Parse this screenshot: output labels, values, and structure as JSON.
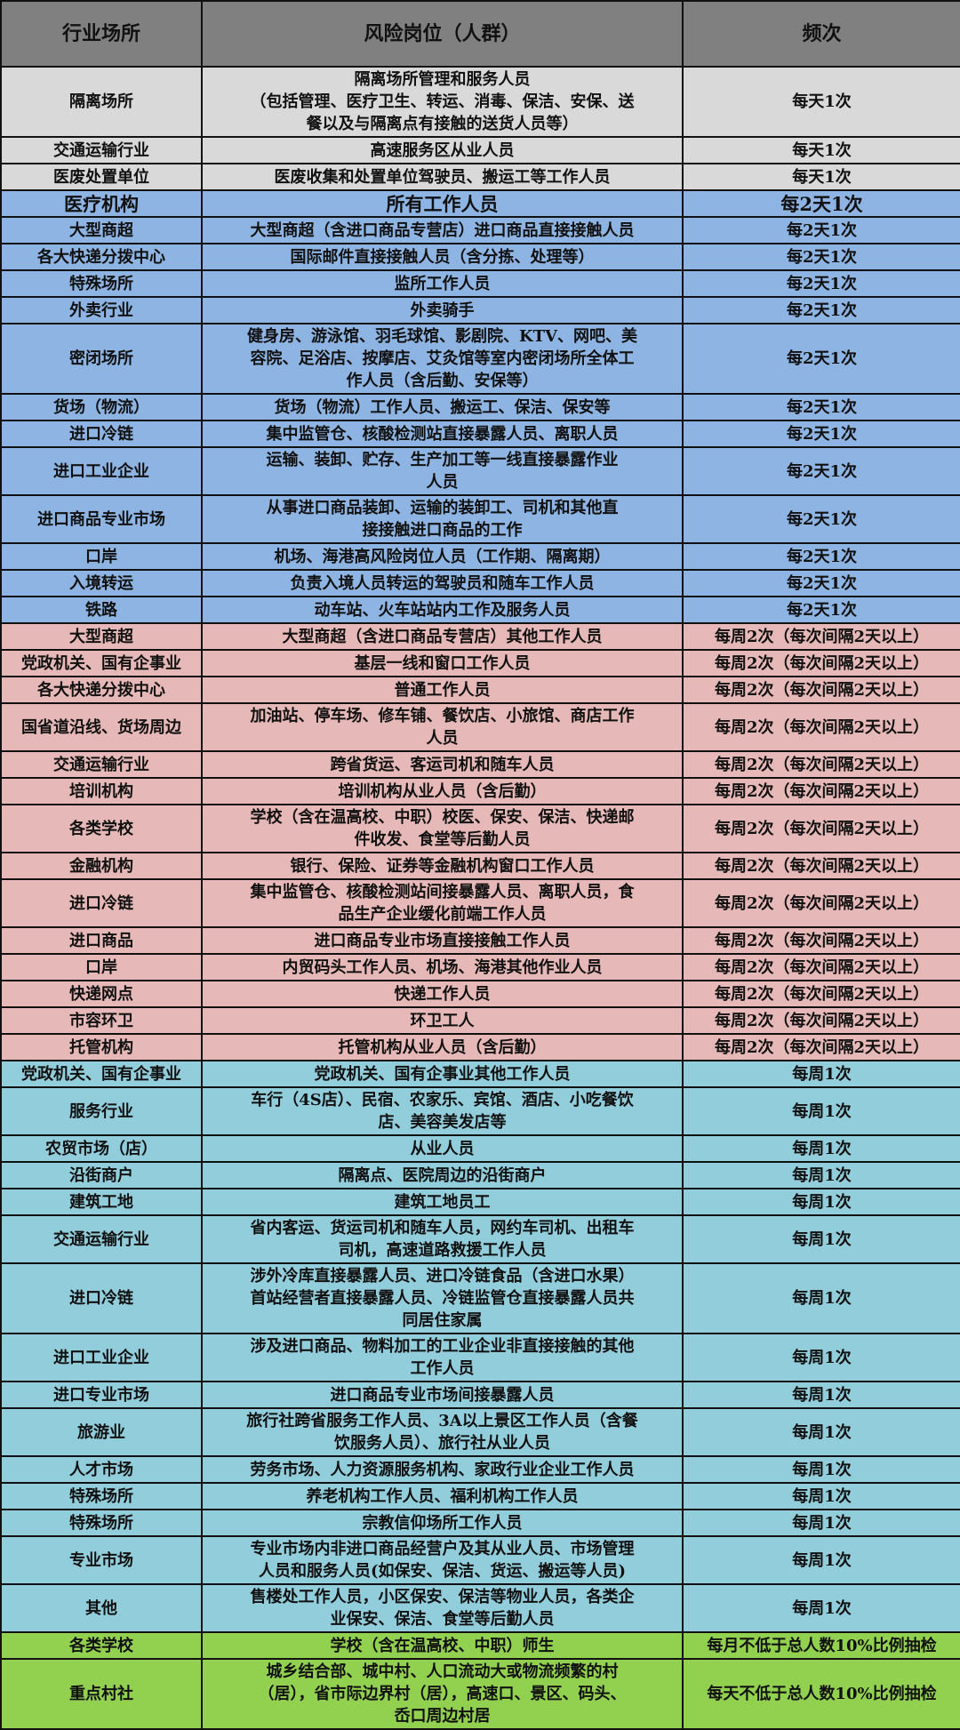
{
  "header": {
    "industry": "行业场所",
    "position": "风险岗位（人群）",
    "frequency": "频次"
  },
  "group_colors": {
    "gray": "#d9d9d9",
    "blue": "#8db4e2",
    "pink": "#e6b8b7",
    "teal": "#92cddc",
    "green": "#92d050",
    "header": "#808080"
  },
  "rows": [
    {
      "group": "gray",
      "industry": "隔离场所",
      "position": "隔离场所管理和服务人员\n（包括管理、医疗卫生、转运、消毒、保洁、安保、送\n餐以及与隔离点有接触的送货人员等）",
      "frequency": "每天1次"
    },
    {
      "group": "gray",
      "industry": "交通运输行业",
      "position": "高速服务区从业人员",
      "frequency": "每天1次"
    },
    {
      "group": "gray",
      "industry": "医废处置单位",
      "position": "医废收集和处置单位驾驶员、搬运工等工作人员",
      "frequency": "每天1次"
    },
    {
      "group": "blue",
      "industry": "医疗机构",
      "position": "所有工作人员",
      "frequency": "每2天1次",
      "big": true
    },
    {
      "group": "blue",
      "industry": "大型商超",
      "position": "大型商超（含进口商品专营店）进口商品直接接触人员",
      "frequency": "每2天1次"
    },
    {
      "group": "blue",
      "industry": "各大快递分拨中心",
      "position": "国际邮件直接接触人员（含分拣、处理等）",
      "frequency": "每2天1次"
    },
    {
      "group": "blue",
      "industry": "特殊场所",
      "position": "监所工作人员",
      "frequency": "每2天1次"
    },
    {
      "group": "blue",
      "industry": "外卖行业",
      "position": "外卖骑手",
      "frequency": "每2天1次"
    },
    {
      "group": "blue",
      "industry": "密闭场所",
      "position": "健身房、游泳馆、羽毛球馆、影剧院、KTV、网吧、美\n容院、足浴店、按摩店、艾灸馆等室内密闭场所全体工\n作人员（含后勤、安保等）",
      "frequency": "每2天1次"
    },
    {
      "group": "blue",
      "industry": "货场（物流）",
      "position": "货场（物流）工作人员、搬运工、保洁、保安等",
      "frequency": "每2天1次"
    },
    {
      "group": "blue",
      "industry": "进口冷链",
      "position": "集中监管仓、核酸检测站直接暴露人员、离职人员",
      "frequency": "每2天1次"
    },
    {
      "group": "blue",
      "industry": "进口工业企业",
      "position": "运输、装卸、贮存、生产加工等一线直接暴露作业\n人员",
      "frequency": "每2天1次"
    },
    {
      "group": "blue",
      "industry": "进口商品专业市场",
      "position": "从事进口商品装卸、运输的装卸工、司机和其他直\n接接触进口商品的工作",
      "frequency": "每2天1次"
    },
    {
      "group": "blue",
      "industry": "口岸",
      "position": "机场、海港高风险岗位人员（工作期、隔离期）",
      "frequency": "每2天1次"
    },
    {
      "group": "blue",
      "industry": "入境转运",
      "position": "负责入境人员转运的驾驶员和随车工作人员",
      "frequency": "每2天1次"
    },
    {
      "group": "blue",
      "industry": "铁路",
      "position": "动车站、火车站站内工作及服务人员",
      "frequency": "每2天1次"
    },
    {
      "group": "pink",
      "industry": "大型商超",
      "position": "大型商超（含进口商品专营店）其他工作人员",
      "frequency": "每周2次（每次间隔2天以上）"
    },
    {
      "group": "pink",
      "industry": "党政机关、国有企事业",
      "position": "基层一线和窗口工作人员",
      "frequency": "每周2次（每次间隔2天以上）"
    },
    {
      "group": "pink",
      "industry": "各大快递分拨中心",
      "position": "普通工作人员",
      "frequency": "每周2次（每次间隔2天以上）"
    },
    {
      "group": "pink",
      "industry": "国省道沿线、货场周边",
      "position": "加油站、停车场、修车铺、餐饮店、小旅馆、商店工作\n人员",
      "frequency": "每周2次（每次间隔2天以上）"
    },
    {
      "group": "pink",
      "industry": "交通运输行业",
      "position": "跨省货运、客运司机和随车人员",
      "frequency": "每周2次（每次间隔2天以上）"
    },
    {
      "group": "pink",
      "industry": "培训机构",
      "position": "培训机构从业人员（含后勤）",
      "frequency": "每周2次（每次间隔2天以上）"
    },
    {
      "group": "pink",
      "industry": "各类学校",
      "position": "学校（含在温高校、中职）校医、保安、保洁、快递邮\n件收发、食堂等后勤人员",
      "frequency": "每周2次（每次间隔2天以上）"
    },
    {
      "group": "pink",
      "industry": "金融机构",
      "position": "银行、保险、证券等金融机构窗口工作人员",
      "frequency": "每周2次（每次间隔2天以上）"
    },
    {
      "group": "pink",
      "industry": "进口冷链",
      "position": "集中监管仓、核酸检测站间接暴露人员、离职人员，食\n品生产企业缓化前端工作人员",
      "frequency": "每周2次（每次间隔2天以上）"
    },
    {
      "group": "pink",
      "industry": "进口商品",
      "position": "进口商品专业市场直接接触工作人员",
      "frequency": "每周2次（每次间隔2天以上）"
    },
    {
      "group": "pink",
      "industry": "口岸",
      "position": "内贸码头工作人员、机场、海港其他作业人员",
      "frequency": "每周2次（每次间隔2天以上）"
    },
    {
      "group": "pink",
      "industry": "快递网点",
      "position": "快递工作人员",
      "frequency": "每周2次（每次间隔2天以上）"
    },
    {
      "group": "pink",
      "industry": "市容环卫",
      "position": "环卫工人",
      "frequency": "每周2次（每次间隔2天以上）"
    },
    {
      "group": "pink",
      "industry": "托管机构",
      "position": "托管机构从业人员（含后勤）",
      "frequency": "每周2次（每次间隔2天以上）"
    },
    {
      "group": "teal",
      "industry": "党政机关、国有企事业",
      "position": "党政机关、国有企事业其他工作人员",
      "frequency": "每周1次"
    },
    {
      "group": "teal",
      "industry": "服务行业",
      "position": "车行（4S店）、民宿、农家乐、宾馆、酒店、小吃餐饮\n店、美容美发店等",
      "frequency": "每周1次"
    },
    {
      "group": "teal",
      "industry": "农贸市场（店）",
      "position": "从业人员",
      "frequency": "每周1次"
    },
    {
      "group": "teal",
      "industry": "沿街商户",
      "position": "隔离点、医院周边的沿街商户",
      "frequency": "每周1次"
    },
    {
      "group": "teal",
      "industry": "建筑工地",
      "position": "建筑工地员工",
      "frequency": "每周1次"
    },
    {
      "group": "teal",
      "industry": "交通运输行业",
      "position": "省内客运、货运司机和随车人员，网约车司机、出租车\n司机，高速道路救援工作人员",
      "frequency": "每周1次"
    },
    {
      "group": "teal",
      "industry": "进口冷链",
      "position": "涉外冷库直接暴露人员、进口冷链食品（含进口水果）\n首站经营者直接暴露人员、冷链监管仓直接暴露人员共\n同居住家属",
      "frequency": "每周1次"
    },
    {
      "group": "teal",
      "industry": "进口工业企业",
      "position": "涉及进口商品、物料加工的工业企业非直接接触的其他\n工作人员",
      "frequency": "每周1次"
    },
    {
      "group": "teal",
      "industry": "进口专业市场",
      "position": "进口商品专业市场间接暴露人员",
      "frequency": "每周1次"
    },
    {
      "group": "teal",
      "industry": "旅游业",
      "position": "旅行社跨省服务工作人员、3A以上景区工作人员（含餐\n饮服务人员）、旅行社从业人员",
      "frequency": "每周1次"
    },
    {
      "group": "teal",
      "industry": "人才市场",
      "position": "劳务市场、人力资源服务机构、家政行业企业工作人员",
      "frequency": "每周1次"
    },
    {
      "group": "teal",
      "industry": "特殊场所",
      "position": "养老机构工作人员、福利机构工作人员",
      "frequency": "每周1次"
    },
    {
      "group": "teal",
      "industry": "特殊场所",
      "position": "宗教信仰场所工作人员",
      "frequency": "每周1次"
    },
    {
      "group": "teal",
      "industry": "专业市场",
      "position": "专业市场内非进口商品经营户及其从业人员、市场管理\n人员和服务人员(如保安、保洁、货运、搬运等人员)",
      "frequency": "每周1次"
    },
    {
      "group": "teal",
      "industry": "其他",
      "position": "售楼处工作人员，小区保安、保洁等物业人员，各类企\n业保安、保洁、食堂等后勤人员",
      "frequency": "每周1次"
    },
    {
      "group": "green",
      "industry": "各类学校",
      "position": "学校（含在温高校、中职）师生",
      "frequency": "每月不低于总人数10%比例抽检"
    },
    {
      "group": "green",
      "industry": "重点村社",
      "position": "城乡结合部、城中村、人口流动大或物流频繁的村\n（居），省市际边界村（居），高速口、景区、码头、\n岙口周边村居",
      "frequency": "每天不低于总人数10%比例抽检"
    }
  ]
}
